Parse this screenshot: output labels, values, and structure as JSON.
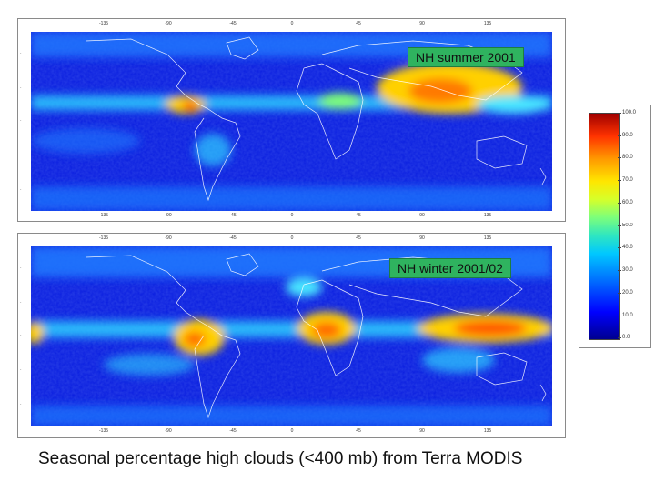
{
  "caption": "Seasonal percentage high clouds (<400 mb) from Terra MODIS",
  "panels": {
    "summer": {
      "label": "NH summer 2001"
    },
    "winter": {
      "label": "NH winter 2001/02"
    }
  },
  "lon_ticks": [
    "-135",
    "-90",
    "-45",
    "0",
    "45",
    "90",
    "135"
  ],
  "colorbar": {
    "ticks": [
      "100.0",
      "90.0",
      "80.0",
      "70.0",
      "60.0",
      "50.0",
      "40.0",
      "30.0",
      "20.0",
      "10.0",
      "0.0"
    ],
    "colors": [
      "#00008f",
      "#0000ff",
      "#0066ff",
      "#00c8ff",
      "#7dff7a",
      "#ffe600",
      "#ff9900",
      "#ff3300",
      "#a00000"
    ]
  }
}
